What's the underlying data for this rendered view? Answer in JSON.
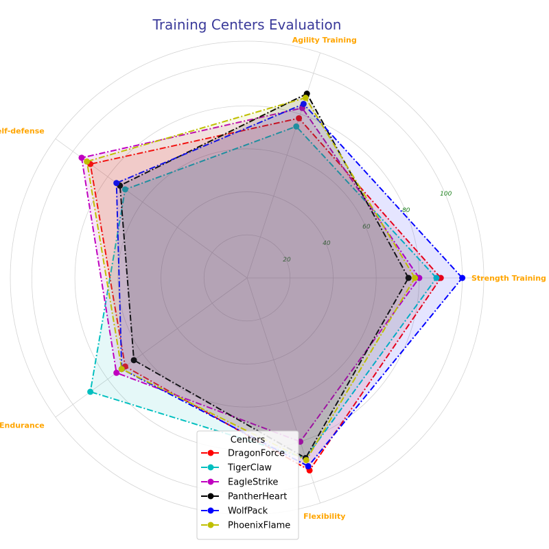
{
  "chart_data": {
    "type": "radar",
    "title": "Training Centers Evaluation",
    "title_color": "#3a3a9a",
    "categories": [
      "Strength Training",
      "Agility Training",
      "Self-defense",
      "Endurance",
      "Flexibility"
    ],
    "category_label_color": "#ffa500",
    "radial_ticks": [
      20,
      40,
      60,
      80,
      100
    ],
    "radial_tick_color": "#1a7f1a",
    "rlim": [
      0,
      110
    ],
    "series": [
      {
        "name": "DragonForce",
        "color": "#ff0000",
        "values": [
          90,
          78,
          90,
          70,
          94
        ]
      },
      {
        "name": "TigerClaw",
        "color": "#00bfbf",
        "values": [
          88,
          74,
          70,
          90,
          88
        ]
      },
      {
        "name": "EagleStrike",
        "color": "#bf00bf",
        "values": [
          80,
          83,
          95,
          75,
          80
        ]
      },
      {
        "name": "PantherHeart",
        "color": "#000000",
        "values": [
          75,
          90,
          73,
          65,
          88
        ]
      },
      {
        "name": "WolfPack",
        "color": "#0000ff",
        "values": [
          100,
          85,
          75,
          72,
          92
        ]
      },
      {
        "name": "PhoenixFlame",
        "color": "#bfbf00",
        "values": [
          78,
          88,
          92,
          72,
          89
        ]
      }
    ],
    "legend": {
      "title": "Centers",
      "placement": "bottom-center"
    },
    "grid": true
  }
}
